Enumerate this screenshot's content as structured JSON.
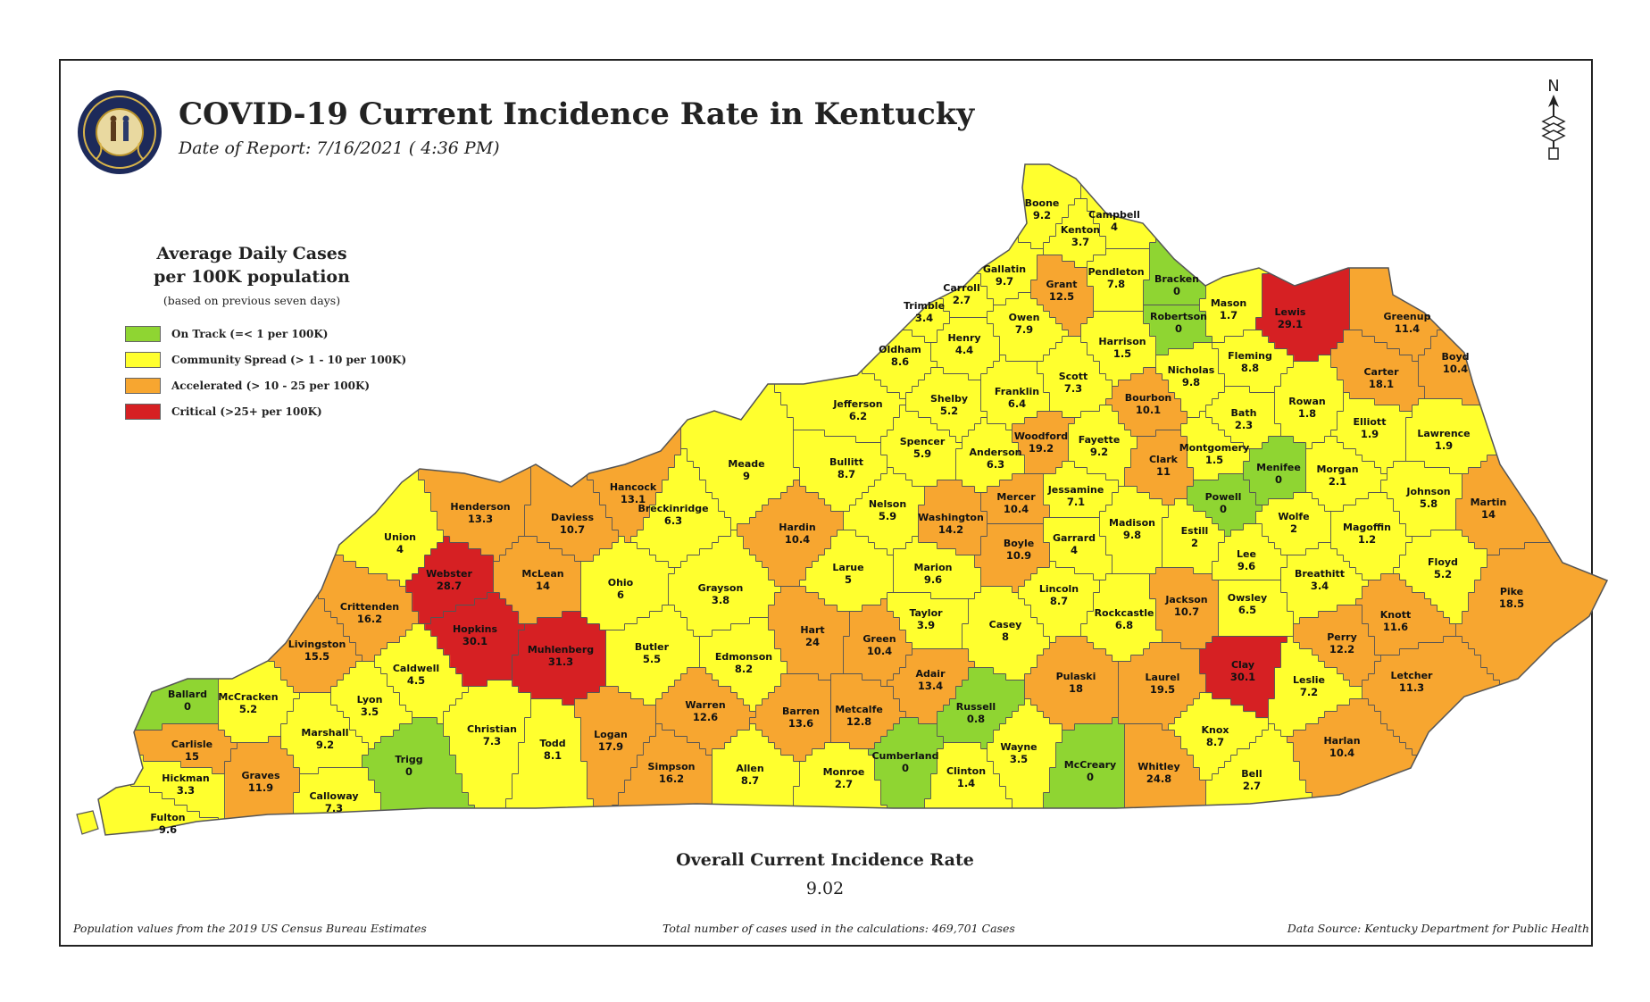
{
  "header": {
    "title": "COVID-19 Current Incidence Rate in Kentucky",
    "report_date": "Date of Report: 7/16/2021 ( 4:36 PM)",
    "seal_text": "COMMONWEALTH OF KENTUCKY"
  },
  "north_arrow": {
    "letter": "N"
  },
  "legend": {
    "title_line1": "Average Daily Cases",
    "title_line2": "per 100K population",
    "note": "(based on previous seven days)",
    "items": [
      {
        "label": "On Track (=< 1 per 100K)",
        "color": "#8fd532"
      },
      {
        "label": "Community Spread (> 1 - 10 per 100K)",
        "color": "#ffff2e"
      },
      {
        "label": "Accelerated (> 10 - 25 per 100K)",
        "color": "#f7a630"
      },
      {
        "label": "Critical (>25+ per 100K)",
        "color": "#d62023"
      }
    ]
  },
  "colors": {
    "on_track": "#8fd532",
    "community": "#ffff2e",
    "accelerated": "#f7a630",
    "critical": "#d62023",
    "border": "#555555"
  },
  "counties": [
    {
      "name": "Boone",
      "value": "9.2",
      "level": "community"
    },
    {
      "name": "Kenton",
      "value": "3.7",
      "level": "community"
    },
    {
      "name": "Campbell",
      "value": "4",
      "level": "community"
    },
    {
      "name": "Gallatin",
      "value": "9.7",
      "level": "community"
    },
    {
      "name": "Grant",
      "value": "12.5",
      "level": "accelerated"
    },
    {
      "name": "Pendleton",
      "value": "7.8",
      "level": "community"
    },
    {
      "name": "Bracken",
      "value": "0",
      "level": "on_track"
    },
    {
      "name": "Robertson",
      "value": "0",
      "level": "on_track"
    },
    {
      "name": "Mason",
      "value": "1.7",
      "level": "community"
    },
    {
      "name": "Lewis",
      "value": "29.1",
      "level": "critical"
    },
    {
      "name": "Greenup",
      "value": "11.4",
      "level": "accelerated"
    },
    {
      "name": "Boyd",
      "value": "10.4",
      "level": "accelerated"
    },
    {
      "name": "Carroll",
      "value": "2.7",
      "level": "community"
    },
    {
      "name": "Trimble",
      "value": "3.4",
      "level": "community"
    },
    {
      "name": "Owen",
      "value": "7.9",
      "level": "community"
    },
    {
      "name": "Henry",
      "value": "4.4",
      "level": "community"
    },
    {
      "name": "Oldham",
      "value": "8.6",
      "level": "community"
    },
    {
      "name": "Harrison",
      "value": "1.5",
      "level": "community"
    },
    {
      "name": "Fleming",
      "value": "8.8",
      "level": "community"
    },
    {
      "name": "Carter",
      "value": "18.1",
      "level": "accelerated"
    },
    {
      "name": "Nicholas",
      "value": "9.8",
      "level": "community"
    },
    {
      "name": "Scott",
      "value": "7.3",
      "level": "community"
    },
    {
      "name": "Franklin",
      "value": "6.4",
      "level": "community"
    },
    {
      "name": "Shelby",
      "value": "5.2",
      "level": "community"
    },
    {
      "name": "Jefferson",
      "value": "6.2",
      "level": "community"
    },
    {
      "name": "Bourbon",
      "value": "10.1",
      "level": "accelerated"
    },
    {
      "name": "Bath",
      "value": "2.3",
      "level": "community"
    },
    {
      "name": "Rowan",
      "value": "1.8",
      "level": "community"
    },
    {
      "name": "Elliott",
      "value": "1.9",
      "level": "community"
    },
    {
      "name": "Lawrence",
      "value": "1.9",
      "level": "community"
    },
    {
      "name": "Woodford",
      "value": "19.2",
      "level": "accelerated"
    },
    {
      "name": "Fayette",
      "value": "9.2",
      "level": "community"
    },
    {
      "name": "Montgomery",
      "value": "1.5",
      "level": "community"
    },
    {
      "name": "Clark",
      "value": "11",
      "level": "accelerated"
    },
    {
      "name": "Anderson",
      "value": "6.3",
      "level": "community"
    },
    {
      "name": "Spencer",
      "value": "5.9",
      "level": "community"
    },
    {
      "name": "Bullitt",
      "value": "8.7",
      "level": "community"
    },
    {
      "name": "Meade",
      "value": "9",
      "level": "community"
    },
    {
      "name": "Menifee",
      "value": "0",
      "level": "on_track"
    },
    {
      "name": "Morgan",
      "value": "2.1",
      "level": "community"
    },
    {
      "name": "Johnson",
      "value": "5.8",
      "level": "community"
    },
    {
      "name": "Martin",
      "value": "14",
      "level": "accelerated"
    },
    {
      "name": "Hancock",
      "value": "13.1",
      "level": "accelerated"
    },
    {
      "name": "Henderson",
      "value": "13.3",
      "level": "accelerated"
    },
    {
      "name": "Daviess",
      "value": "10.7",
      "level": "accelerated"
    },
    {
      "name": "Breckinridge",
      "value": "6.3",
      "level": "community"
    },
    {
      "name": "Hardin",
      "value": "10.4",
      "level": "accelerated"
    },
    {
      "name": "Nelson",
      "value": "5.9",
      "level": "community"
    },
    {
      "name": "Washington",
      "value": "14.2",
      "level": "accelerated"
    },
    {
      "name": "Mercer",
      "value": "10.4",
      "level": "accelerated"
    },
    {
      "name": "Jessamine",
      "value": "7.1",
      "level": "community"
    },
    {
      "name": "Madison",
      "value": "9.8",
      "level": "community"
    },
    {
      "name": "Powell",
      "value": "0",
      "level": "on_track"
    },
    {
      "name": "Estill",
      "value": "2",
      "level": "community"
    },
    {
      "name": "Wolfe",
      "value": "2",
      "level": "community"
    },
    {
      "name": "Magoffin",
      "value": "1.2",
      "level": "community"
    },
    {
      "name": "Floyd",
      "value": "5.2",
      "level": "community"
    },
    {
      "name": "Union",
      "value": "4",
      "level": "community"
    },
    {
      "name": "Webster",
      "value": "28.7",
      "level": "critical"
    },
    {
      "name": "McLean",
      "value": "14",
      "level": "accelerated"
    },
    {
      "name": "Ohio",
      "value": "6",
      "level": "community"
    },
    {
      "name": "Grayson",
      "value": "3.8",
      "level": "community"
    },
    {
      "name": "Larue",
      "value": "5",
      "level": "community"
    },
    {
      "name": "Marion",
      "value": "9.6",
      "level": "community"
    },
    {
      "name": "Boyle",
      "value": "10.9",
      "level": "accelerated"
    },
    {
      "name": "Garrard",
      "value": "4",
      "level": "community"
    },
    {
      "name": "Lincoln",
      "value": "8.7",
      "level": "community"
    },
    {
      "name": "Lee",
      "value": "9.6",
      "level": "community"
    },
    {
      "name": "Breathitt",
      "value": "3.4",
      "level": "community"
    },
    {
      "name": "Pike",
      "value": "18.5",
      "level": "accelerated"
    },
    {
      "name": "Crittenden",
      "value": "16.2",
      "level": "accelerated"
    },
    {
      "name": "Hopkins",
      "value": "30.1",
      "level": "critical"
    },
    {
      "name": "Muhlenberg",
      "value": "31.3",
      "level": "critical"
    },
    {
      "name": "Butler",
      "value": "5.5",
      "level": "community"
    },
    {
      "name": "Edmonson",
      "value": "8.2",
      "level": "community"
    },
    {
      "name": "Hart",
      "value": "24",
      "level": "accelerated"
    },
    {
      "name": "Green",
      "value": "10.4",
      "level": "accelerated"
    },
    {
      "name": "Taylor",
      "value": "3.9",
      "level": "community"
    },
    {
      "name": "Casey",
      "value": "8",
      "level": "community"
    },
    {
      "name": "Rockcastle",
      "value": "6.8",
      "level": "community"
    },
    {
      "name": "Jackson",
      "value": "10.7",
      "level": "accelerated"
    },
    {
      "name": "Owsley",
      "value": "6.5",
      "level": "community"
    },
    {
      "name": "Perry",
      "value": "12.2",
      "level": "accelerated"
    },
    {
      "name": "Knott",
      "value": "11.6",
      "level": "accelerated"
    },
    {
      "name": "Letcher",
      "value": "11.3",
      "level": "accelerated"
    },
    {
      "name": "Livingston",
      "value": "15.5",
      "level": "accelerated"
    },
    {
      "name": "Caldwell",
      "value": "4.5",
      "level": "community"
    },
    {
      "name": "Lyon",
      "value": "3.5",
      "level": "community"
    },
    {
      "name": "Ballard",
      "value": "0",
      "level": "on_track"
    },
    {
      "name": "McCracken",
      "value": "5.2",
      "level": "community"
    },
    {
      "name": "Marshall",
      "value": "9.2",
      "level": "community"
    },
    {
      "name": "Carlisle",
      "value": "15",
      "level": "accelerated"
    },
    {
      "name": "Graves",
      "value": "11.9",
      "level": "accelerated"
    },
    {
      "name": "Hickman",
      "value": "3.3",
      "level": "community"
    },
    {
      "name": "Fulton",
      "value": "9.6",
      "level": "community"
    },
    {
      "name": "Calloway",
      "value": "7.3",
      "level": "community"
    },
    {
      "name": "Trigg",
      "value": "0",
      "level": "on_track"
    },
    {
      "name": "Christian",
      "value": "7.3",
      "level": "community"
    },
    {
      "name": "Todd",
      "value": "8.1",
      "level": "community"
    },
    {
      "name": "Logan",
      "value": "17.9",
      "level": "accelerated"
    },
    {
      "name": "Simpson",
      "value": "16.2",
      "level": "accelerated"
    },
    {
      "name": "Warren",
      "value": "12.6",
      "level": "accelerated"
    },
    {
      "name": "Allen",
      "value": "8.7",
      "level": "community"
    },
    {
      "name": "Barren",
      "value": "13.6",
      "level": "accelerated"
    },
    {
      "name": "Monroe",
      "value": "2.7",
      "level": "community"
    },
    {
      "name": "Metcalfe",
      "value": "12.8",
      "level": "accelerated"
    },
    {
      "name": "Adair",
      "value": "13.4",
      "level": "accelerated"
    },
    {
      "name": "Cumberland",
      "value": "0",
      "level": "on_track"
    },
    {
      "name": "Russell",
      "value": "0.8",
      "level": "on_track"
    },
    {
      "name": "Clinton",
      "value": "1.4",
      "level": "community"
    },
    {
      "name": "Wayne",
      "value": "3.5",
      "level": "community"
    },
    {
      "name": "Pulaski",
      "value": "18",
      "level": "accelerated"
    },
    {
      "name": "McCreary",
      "value": "0",
      "level": "on_track"
    },
    {
      "name": "Laurel",
      "value": "19.5",
      "level": "accelerated"
    },
    {
      "name": "Whitley",
      "value": "24.8",
      "level": "accelerated"
    },
    {
      "name": "Knox",
      "value": "8.7",
      "level": "community"
    },
    {
      "name": "Clay",
      "value": "30.1",
      "level": "critical"
    },
    {
      "name": "Bell",
      "value": "2.7",
      "level": "community"
    },
    {
      "name": "Leslie",
      "value": "7.2",
      "level": "community"
    },
    {
      "name": "Harlan",
      "value": "10.4",
      "level": "accelerated"
    }
  ],
  "overall": {
    "label": "Overall Current Incidence Rate",
    "value": "9.02"
  },
  "footer": {
    "left": "Population values from the 2019 US Census Bureau Estimates",
    "center": "Total number of cases used in the calculations: 469,701 Cases",
    "right": "Data Source: Kentucky Department for Public Health"
  }
}
